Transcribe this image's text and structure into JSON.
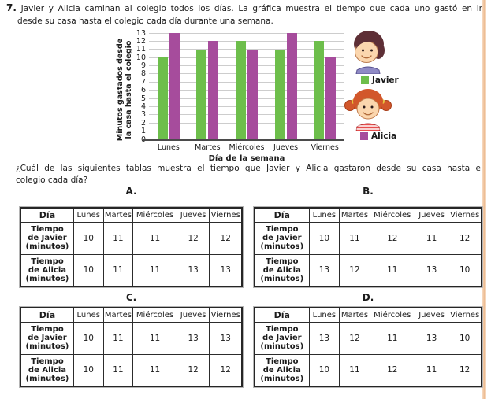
{
  "problem": {
    "number": "7.",
    "intro_line1": "Javier y Alicia caminan al colegio todos los días. La gráfica muestra el tiempo que cada uno gastó en ir",
    "intro_line2": "desde su casa hasta el colegio cada día durante una semana.",
    "question_line1": "¿Cuál de las siguientes tablas muestra el tiempo que Javier y Alicia gastaron desde su casa hasta e",
    "question_line2": "colegio cada día?"
  },
  "chart_data": {
    "type": "bar",
    "categories": [
      "Lunes",
      "Martes",
      "Miércoles",
      "Jueves",
      "Viernes"
    ],
    "series": [
      {
        "name": "Javier",
        "color": "#6dbe4b",
        "values": [
          10,
          11,
          12,
          11,
          12
        ]
      },
      {
        "name": "Alicia",
        "color": "#a64c9c",
        "values": [
          13,
          12,
          11,
          13,
          10
        ]
      }
    ],
    "title": "",
    "ylabel_lines": [
      "Minutos gastados desde",
      "la casa hasta el colegio"
    ],
    "xlabel": "Día de la semana",
    "ylim": [
      0,
      13
    ],
    "ytick_step": 1,
    "grid": true,
    "legend_position": "right",
    "legend": [
      {
        "label": "Javier",
        "color": "#6dbe4b"
      },
      {
        "label": "Alicia",
        "color": "#a64c9c"
      }
    ]
  },
  "options": {
    "col_headers": [
      "Día",
      "Lunes",
      "Martes",
      "Miércoles",
      "Jueves",
      "Viernes"
    ],
    "row_label_javier_lines": [
      "Tiempo",
      "de Javier",
      "(minutos)"
    ],
    "row_label_alicia_lines": [
      "Tiempo",
      "de Alicia",
      "(minutos)"
    ],
    "tables": [
      {
        "label": "A.",
        "javier": [
          10,
          11,
          11,
          12,
          12
        ],
        "alicia": [
          10,
          11,
          11,
          13,
          13
        ]
      },
      {
        "label": "B.",
        "javier": [
          10,
          11,
          12,
          11,
          12
        ],
        "alicia": [
          13,
          12,
          11,
          13,
          10
        ]
      },
      {
        "label": "C.",
        "javier": [
          10,
          11,
          11,
          13,
          13
        ],
        "alicia": [
          10,
          11,
          11,
          12,
          12
        ]
      },
      {
        "label": "D.",
        "javier": [
          13,
          12,
          11,
          13,
          10
        ],
        "alicia": [
          10,
          11,
          12,
          11,
          12
        ]
      }
    ]
  },
  "colors": {
    "javier_green": "#6dbe4b",
    "alicia_magenta": "#a64c9c",
    "gridline_gray": "#cdcdcd",
    "axis_dark": "#4b4b4b",
    "page_edge_peach": "#ecba90"
  }
}
